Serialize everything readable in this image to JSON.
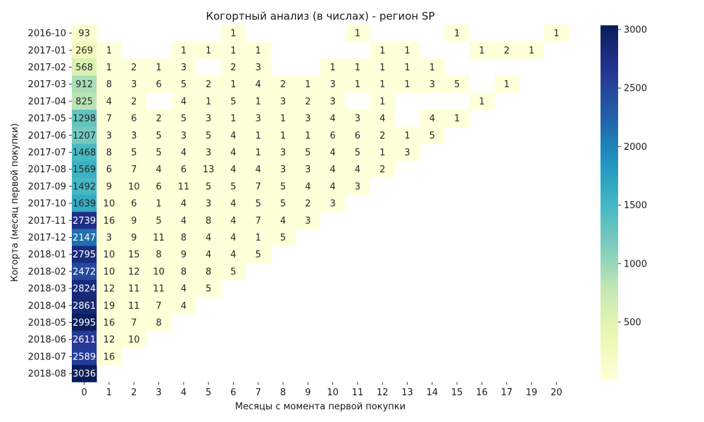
{
  "chart_data": {
    "type": "heatmap",
    "title": "Когортный анализ (в числах) - регион SP",
    "xlabel": "Месяцы с момента первой покупки",
    "ylabel": "Когорта (месяц первой покупки)",
    "colormap": "YlGnBu",
    "color_range": [
      1,
      3036
    ],
    "colorbar_ticks": [
      500,
      1000,
      1500,
      2000,
      2500,
      3000
    ],
    "columns": [
      "0",
      "1",
      "2",
      "3",
      "4",
      "5",
      "6",
      "7",
      "8",
      "9",
      "10",
      "11",
      "12",
      "13",
      "14",
      "15",
      "16",
      "17",
      "19",
      "20"
    ],
    "rows": [
      "2016-10",
      "2017-01",
      "2017-02",
      "2017-03",
      "2017-04",
      "2017-05",
      "2017-06",
      "2017-07",
      "2017-08",
      "2017-09",
      "2017-10",
      "2017-11",
      "2017-12",
      "2018-01",
      "2018-02",
      "2018-03",
      "2018-04",
      "2018-05",
      "2018-06",
      "2018-07",
      "2018-08"
    ],
    "values": [
      [
        93,
        null,
        null,
        null,
        null,
        null,
        1,
        null,
        null,
        null,
        null,
        1,
        null,
        null,
        null,
        1,
        null,
        null,
        null,
        1
      ],
      [
        269,
        1,
        null,
        null,
        1,
        1,
        1,
        1,
        null,
        null,
        null,
        null,
        1,
        1,
        null,
        null,
        1,
        2,
        1,
        null
      ],
      [
        568,
        1,
        2,
        1,
        3,
        null,
        2,
        3,
        null,
        null,
        1,
        1,
        1,
        1,
        1,
        null,
        null,
        null,
        null,
        null
      ],
      [
        912,
        8,
        3,
        6,
        5,
        2,
        1,
        4,
        2,
        1,
        3,
        1,
        1,
        1,
        3,
        5,
        null,
        1,
        null,
        null
      ],
      [
        825,
        4,
        2,
        null,
        4,
        1,
        5,
        1,
        3,
        2,
        3,
        null,
        1,
        null,
        null,
        null,
        1,
        null,
        null,
        null
      ],
      [
        1298,
        7,
        6,
        2,
        5,
        3,
        1,
        3,
        1,
        3,
        4,
        3,
        4,
        null,
        4,
        1,
        null,
        null,
        null,
        null
      ],
      [
        1207,
        3,
        3,
        5,
        3,
        5,
        4,
        1,
        1,
        1,
        6,
        6,
        2,
        1,
        5,
        null,
        null,
        null,
        null,
        null
      ],
      [
        1468,
        8,
        5,
        5,
        4,
        3,
        4,
        1,
        3,
        5,
        4,
        5,
        1,
        3,
        null,
        null,
        null,
        null,
        null,
        null
      ],
      [
        1569,
        6,
        7,
        4,
        6,
        13,
        4,
        4,
        3,
        3,
        4,
        4,
        2,
        null,
        null,
        null,
        null,
        null,
        null,
        null
      ],
      [
        1492,
        9,
        10,
        6,
        11,
        5,
        5,
        7,
        5,
        4,
        4,
        3,
        null,
        null,
        null,
        null,
        null,
        null,
        null,
        null
      ],
      [
        1639,
        10,
        6,
        1,
        4,
        3,
        4,
        5,
        5,
        2,
        3,
        null,
        null,
        null,
        null,
        null,
        null,
        null,
        null,
        null
      ],
      [
        2739,
        16,
        9,
        5,
        4,
        8,
        4,
        7,
        4,
        3,
        null,
        null,
        null,
        null,
        null,
        null,
        null,
        null,
        null,
        null
      ],
      [
        2147,
        3,
        9,
        11,
        8,
        4,
        4,
        1,
        5,
        null,
        null,
        null,
        null,
        null,
        null,
        null,
        null,
        null,
        null,
        null
      ],
      [
        2795,
        10,
        15,
        8,
        9,
        4,
        4,
        5,
        null,
        null,
        null,
        null,
        null,
        null,
        null,
        null,
        null,
        null,
        null,
        null
      ],
      [
        2472,
        10,
        12,
        10,
        8,
        8,
        5,
        null,
        null,
        null,
        null,
        null,
        null,
        null,
        null,
        null,
        null,
        null,
        null,
        null
      ],
      [
        2824,
        12,
        11,
        11,
        4,
        5,
        null,
        null,
        null,
        null,
        null,
        null,
        null,
        null,
        null,
        null,
        null,
        null,
        null,
        null
      ],
      [
        2861,
        19,
        11,
        7,
        4,
        null,
        null,
        null,
        null,
        null,
        null,
        null,
        null,
        null,
        null,
        null,
        null,
        null,
        null,
        null
      ],
      [
        2995,
        16,
        7,
        8,
        null,
        null,
        null,
        null,
        null,
        null,
        null,
        null,
        null,
        null,
        null,
        null,
        null,
        null,
        null,
        null
      ],
      [
        2611,
        12,
        10,
        null,
        null,
        null,
        null,
        null,
        null,
        null,
        null,
        null,
        null,
        null,
        null,
        null,
        null,
        null,
        null,
        null
      ],
      [
        2589,
        16,
        null,
        null,
        null,
        null,
        null,
        null,
        null,
        null,
        null,
        null,
        null,
        null,
        null,
        null,
        null,
        null,
        null,
        null
      ],
      [
        3036,
        null,
        null,
        null,
        null,
        null,
        null,
        null,
        null,
        null,
        null,
        null,
        null,
        null,
        null,
        null,
        null,
        null,
        null,
        null
      ]
    ]
  }
}
